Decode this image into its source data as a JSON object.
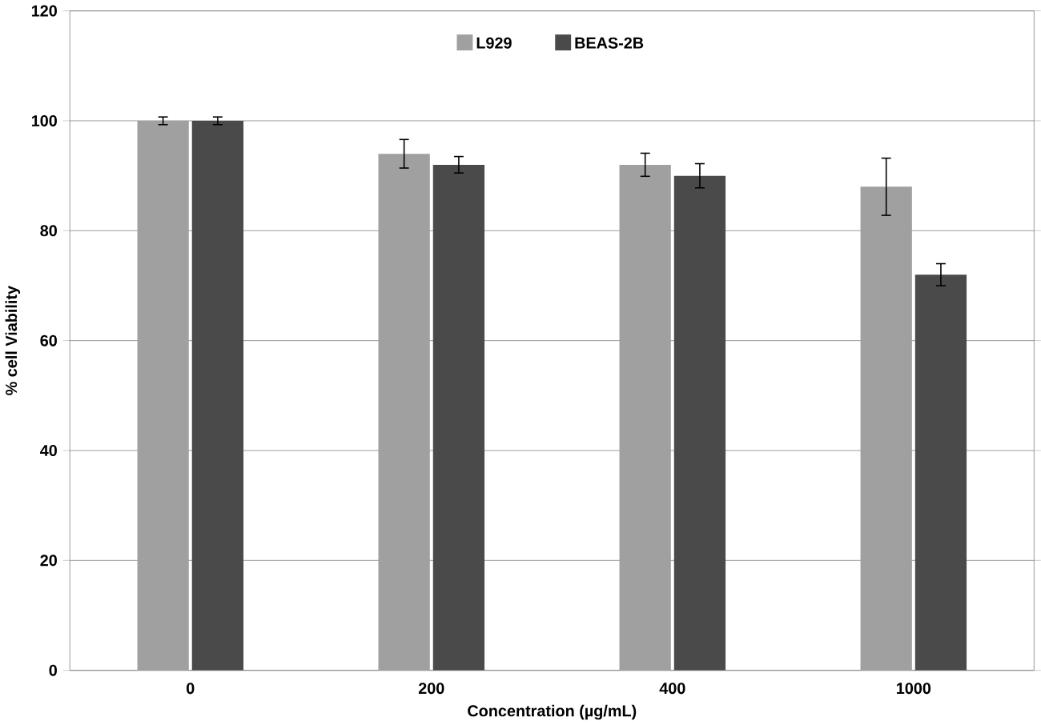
{
  "chart_data": {
    "type": "bar",
    "xlabel": "Concentration (µg/mL)",
    "ylabel": "% cell Viability",
    "categories": [
      "0",
      "200",
      "400",
      "1000"
    ],
    "series": [
      {
        "name": "L929",
        "color": "#a0a0a0",
        "values": [
          100,
          94,
          92,
          88
        ],
        "errors": [
          0.7,
          2.6,
          2.1,
          5.2
        ]
      },
      {
        "name": "BEAS-2B",
        "color": "#4a4a4a",
        "values": [
          100,
          92,
          90,
          72
        ],
        "errors": [
          0.7,
          1.5,
          2.2,
          2
        ]
      }
    ],
    "ylim": [
      0,
      120
    ],
    "yticks": [
      0,
      20,
      40,
      60,
      80,
      100,
      120
    ],
    "grid": "y",
    "legend": "top"
  }
}
